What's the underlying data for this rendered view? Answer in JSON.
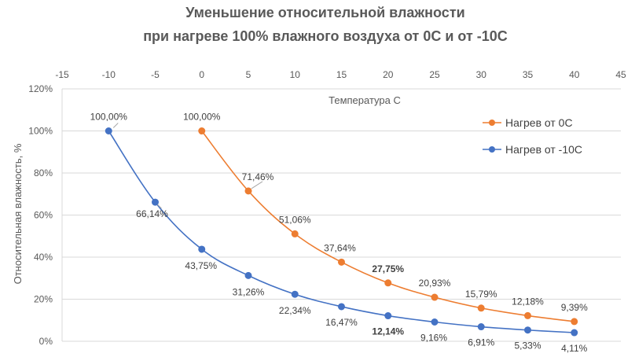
{
  "chart_data": {
    "type": "line",
    "title": [
      "Уменьшение относительной влажности",
      "при нагреве 100% влажного воздуха от 0С и от -10С"
    ],
    "xlabel": "Температура С",
    "ylabel": "Относительная влажность, %",
    "xlim": [
      -15,
      45
    ],
    "ylim": [
      0,
      120
    ],
    "x_ticks": [
      "-15",
      "-10",
      "-5",
      "0",
      "5",
      "10",
      "15",
      "20",
      "25",
      "30",
      "35",
      "40",
      "45"
    ],
    "y_ticks": [
      "0%",
      "20%",
      "40%",
      "60%",
      "80%",
      "100%",
      "120%"
    ],
    "legend_position": "right",
    "series": [
      {
        "name": "Нагрев от 0С",
        "color": "#ED7D31",
        "x": [
          0,
          5,
          10,
          15,
          20,
          25,
          30,
          35,
          40
        ],
        "y": [
          100.0,
          71.46,
          51.06,
          37.64,
          27.75,
          20.93,
          15.79,
          12.18,
          9.39
        ],
        "labels": [
          "100,00%",
          "71,46%",
          "51,06%",
          "37,64%",
          "27,75%",
          "20,93%",
          "15,79%",
          "12,18%",
          "9,39%"
        ]
      },
      {
        "name": "Нагрев от -10С",
        "color": "#4472C4",
        "x": [
          -10,
          -5,
          0,
          5,
          10,
          15,
          20,
          25,
          30,
          35,
          40
        ],
        "y": [
          100.0,
          66.14,
          43.75,
          31.26,
          22.34,
          16.47,
          12.14,
          9.16,
          6.91,
          5.33,
          4.11
        ],
        "labels": [
          "100,00%",
          "66,14%",
          "43,75%",
          "31,26%",
          "22,34%",
          "16,47%",
          "12,14%",
          "9,16%",
          "6,91%",
          "5,33%",
          "4,11%"
        ]
      }
    ]
  }
}
